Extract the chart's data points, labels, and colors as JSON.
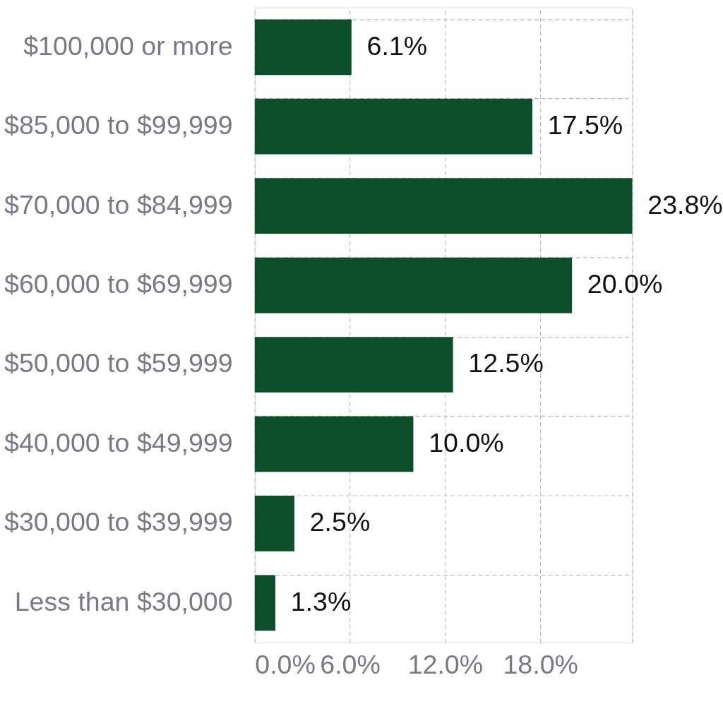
{
  "chart_data": {
    "type": "bar",
    "orientation": "horizontal",
    "categories": [
      "$100,000 or more",
      "$85,000 to $99,999",
      "$70,000 to $84,999",
      "$60,000 to $69,999",
      "$50,000 to $59,999",
      "$40,000 to $49,999",
      "$30,000 to $39,999",
      "Less than $30,000"
    ],
    "values": [
      6.1,
      17.5,
      23.8,
      20.0,
      12.5,
      10.0,
      2.5,
      1.3
    ],
    "value_labels": [
      "6.1%",
      "17.5%",
      "23.8%",
      "20.0%",
      "12.5%",
      "10.0%",
      "2.5%",
      "1.3%"
    ],
    "color": "#0d4f2b",
    "xlim": [
      0,
      23.8
    ],
    "xticks": [
      {
        "value": 0,
        "label": "0.0%"
      },
      {
        "value": 6,
        "label": "6.0%"
      },
      {
        "value": 12,
        "label": "12.0%"
      },
      {
        "value": 18,
        "label": "18.0%"
      },
      {
        "value": 23.8,
        "label": null
      }
    ],
    "grid": true
  }
}
